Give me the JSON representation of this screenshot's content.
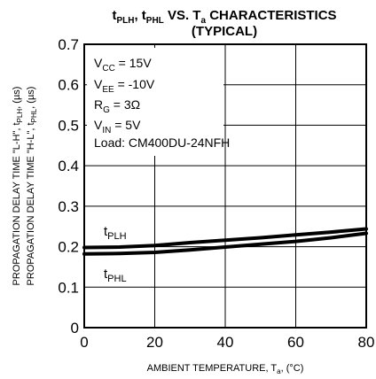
{
  "chart_data": {
    "type": "line",
    "title": {
      "line1": {
        "t1": "t",
        "s1": "PLH",
        "sep": ", ",
        "t2": "t",
        "s2": "PHL",
        "mid": " VS. T",
        "s3": "a",
        "rest": " CHARACTERISTICS"
      },
      "line2": "(TYPICAL)"
    },
    "xlabel": {
      "main": "AMBIENT TEMPERATURE, T",
      "sub": "a",
      "tail": ", (°C)"
    },
    "ylabel": {
      "line1": {
        "a": "PROPAGATION DELAY TIME \"L-H\", t",
        "s1": "PLH",
        "b": ", (µs)"
      },
      "line2": {
        "a": "PROPAGATION DELAY TIME \"H-L\", t",
        "s1": "PHL",
        "b": ", (µs)"
      }
    },
    "xlim": [
      0,
      80
    ],
    "ylim": [
      0,
      0.7
    ],
    "x_ticks": [
      0,
      20,
      40,
      60,
      80
    ],
    "y_ticks": [
      0,
      0.1,
      0.2,
      0.3,
      0.4,
      0.5,
      0.6,
      0.7
    ],
    "x_tick_labels": [
      "0",
      "20",
      "40",
      "60",
      "80"
    ],
    "y_tick_labels": [
      "0",
      "0.1",
      "0.2",
      "0.3",
      "0.4",
      "0.5",
      "0.6",
      "0.7"
    ],
    "grid": true,
    "conditions": [
      {
        "t": "V",
        "s": "CC",
        "r": " = 15V"
      },
      {
        "t": "V",
        "s": "EE",
        "r": " = -10V"
      },
      {
        "t": "R",
        "s": "G",
        "r": " = 3Ω"
      },
      {
        "t": "V",
        "s": "IN",
        "r": " = 5V"
      },
      {
        "t": "Load: CM400DU-24NFH",
        "s": "",
        "r": ""
      }
    ],
    "series": [
      {
        "name": "PLH",
        "label_main": "t",
        "label_sub": "PLH",
        "x": [
          0,
          10,
          20,
          30,
          40,
          50,
          60,
          70,
          80
        ],
        "y": [
          0.198,
          0.199,
          0.203,
          0.21,
          0.216,
          0.222,
          0.229,
          0.236,
          0.244
        ]
      },
      {
        "name": "PHL",
        "label_main": "t",
        "label_sub": "PHL",
        "x": [
          0,
          10,
          20,
          30,
          40,
          50,
          60,
          70,
          80
        ],
        "y": [
          0.182,
          0.183,
          0.186,
          0.192,
          0.199,
          0.206,
          0.213,
          0.222,
          0.233
        ]
      }
    ],
    "line_color": "#000000",
    "grid_color": "#000000"
  }
}
